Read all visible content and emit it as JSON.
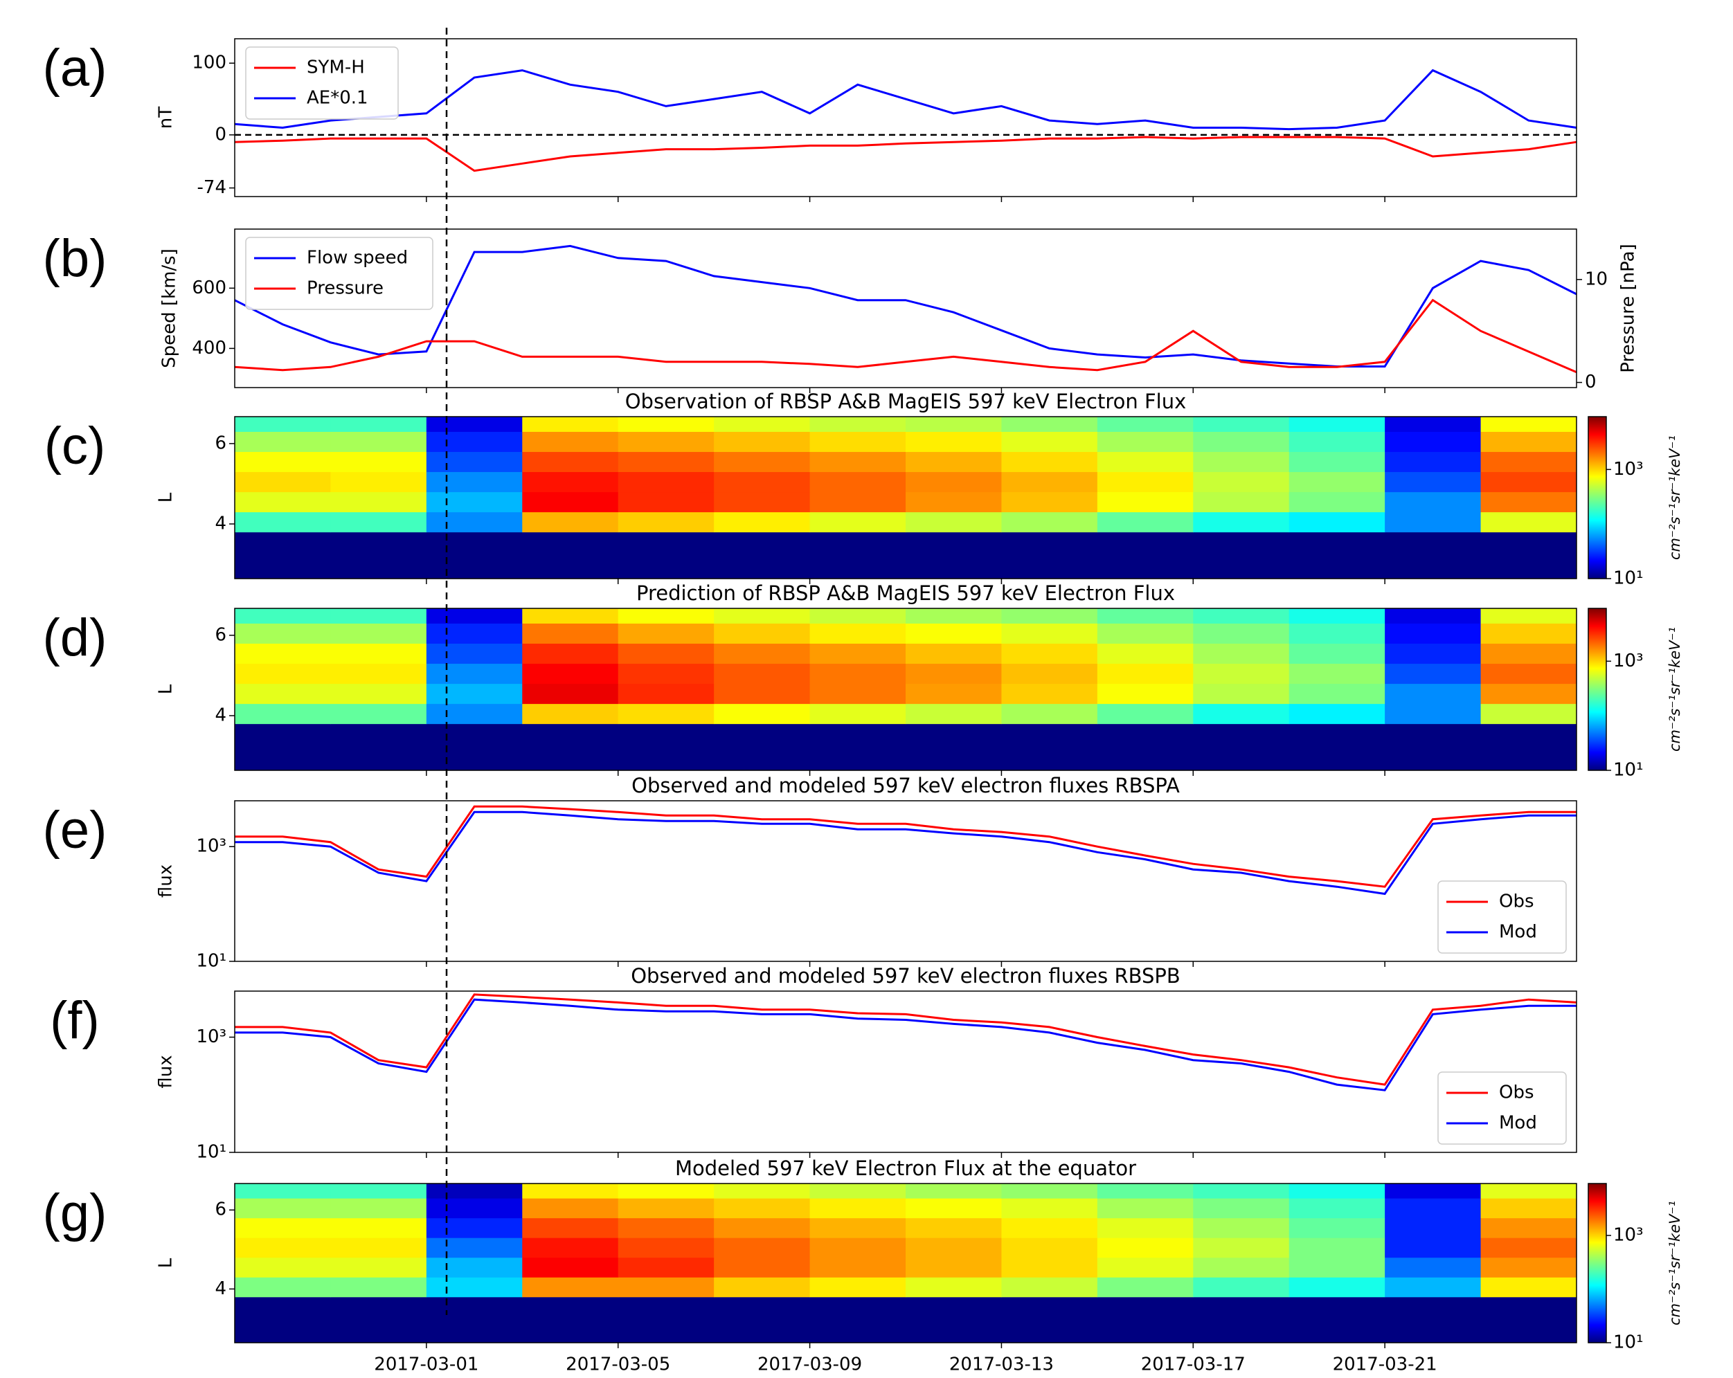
{
  "chart_data": [
    {
      "type": "line",
      "panel_label": "(a)",
      "y_label": "nT",
      "ylim": [
        -86,
        134
      ],
      "yticks": [
        -74,
        0,
        100
      ],
      "reference_line": 0,
      "legend": "upper left",
      "x": [
        "2017-02-25",
        "2017-02-26",
        "2017-02-27",
        "2017-02-28",
        "2017-03-01",
        "2017-03-02",
        "2017-03-03",
        "2017-03-04",
        "2017-03-05",
        "2017-03-06",
        "2017-03-07",
        "2017-03-08",
        "2017-03-09",
        "2017-03-10",
        "2017-03-11",
        "2017-03-12",
        "2017-03-13",
        "2017-03-14",
        "2017-03-15",
        "2017-03-16",
        "2017-03-17",
        "2017-03-18",
        "2017-03-19",
        "2017-03-20",
        "2017-03-21",
        "2017-03-22",
        "2017-03-23",
        "2017-03-24",
        "2017-03-25"
      ],
      "series": [
        {
          "name": "SYM-H",
          "color": "#ff0000",
          "values": [
            -10,
            -8,
            -5,
            -5,
            -5,
            -50,
            -40,
            -30,
            -25,
            -20,
            -20,
            -18,
            -15,
            -15,
            -12,
            -10,
            -8,
            -5,
            -5,
            -3,
            -5,
            -3,
            -3,
            -3,
            -5,
            -30,
            -25,
            -20,
            -10
          ]
        },
        {
          "name": "AE*0.1",
          "color": "#0000ff",
          "values": [
            15,
            10,
            20,
            25,
            30,
            80,
            90,
            70,
            60,
            40,
            50,
            60,
            30,
            70,
            50,
            30,
            40,
            20,
            15,
            20,
            10,
            10,
            8,
            10,
            20,
            90,
            60,
            20,
            10
          ]
        }
      ]
    },
    {
      "type": "line",
      "panel_label": "(b)",
      "y_label": "Speed [km/s]",
      "y2_label": "Pressure [nPa]",
      "ylim": [
        270,
        796
      ],
      "yticks": [
        400,
        600
      ],
      "y2lim": [
        -0.5,
        14.9
      ],
      "y2ticks": [
        0,
        10
      ],
      "legend": "upper left",
      "x": [
        "2017-02-25",
        "2017-02-26",
        "2017-02-27",
        "2017-02-28",
        "2017-03-01",
        "2017-03-02",
        "2017-03-03",
        "2017-03-04",
        "2017-03-05",
        "2017-03-06",
        "2017-03-07",
        "2017-03-08",
        "2017-03-09",
        "2017-03-10",
        "2017-03-11",
        "2017-03-12",
        "2017-03-13",
        "2017-03-14",
        "2017-03-15",
        "2017-03-16",
        "2017-03-17",
        "2017-03-18",
        "2017-03-19",
        "2017-03-20",
        "2017-03-21",
        "2017-03-22",
        "2017-03-23",
        "2017-03-24",
        "2017-03-25"
      ],
      "series": [
        {
          "name": "Flow speed",
          "color": "#0000ff",
          "values": [
            560,
            480,
            420,
            380,
            390,
            720,
            720,
            740,
            700,
            690,
            640,
            620,
            600,
            560,
            560,
            520,
            460,
            400,
            380,
            370,
            380,
            360,
            350,
            340,
            340,
            600,
            690,
            660,
            580
          ]
        },
        {
          "name": "Pressure",
          "color": "#ff0000",
          "axis": "y2",
          "values": [
            1.5,
            1.2,
            1.5,
            2.5,
            4,
            4,
            2.5,
            2.5,
            2.5,
            2,
            2,
            2,
            1.8,
            1.5,
            2,
            2.5,
            2,
            1.5,
            1.2,
            2,
            5,
            2,
            1.5,
            1.5,
            2,
            8,
            5,
            3,
            1
          ]
        }
      ]
    },
    {
      "type": "heatmap",
      "panel_label": "(c)",
      "title": "Observation of RBSP A&B MagEIS 597 keV Electron Flux",
      "y_label": "L",
      "ylim": [
        2.64,
        6.67
      ],
      "yticks": [
        4,
        6
      ],
      "colorbar_label": "cm⁻²s⁻¹sr⁻¹keV⁻¹",
      "clim": [
        10,
        9300
      ],
      "cscale": "log",
      "cticks": [
        {
          "value": 10,
          "label": "10¹"
        },
        {
          "value": 1000,
          "label": "10³"
        }
      ],
      "x_bins": [
        "2017-02-25",
        "2017-02-27",
        "2017-03-01",
        "2017-03-03",
        "2017-03-05",
        "2017-03-07",
        "2017-03-09",
        "2017-03-11",
        "2017-03-13",
        "2017-03-15",
        "2017-03-17",
        "2017-03-19",
        "2017-03-21",
        "2017-03-23",
        "2017-03-25"
      ],
      "y_bins": [
        2.64,
        3.8,
        4.3,
        4.8,
        5.3,
        5.8,
        6.3,
        6.67
      ],
      "z": [
        [
          10,
          10,
          10,
          10,
          10,
          10,
          10,
          10,
          10,
          10,
          10,
          10,
          10,
          10
        ],
        [
          200,
          200,
          60,
          1200,
          1000,
          800,
          600,
          500,
          400,
          250,
          150,
          120,
          60,
          600
        ],
        [
          600,
          600,
          80,
          4000,
          3000,
          2500,
          2000,
          1500,
          1100,
          700,
          450,
          300,
          60,
          1800
        ],
        [
          900,
          800,
          60,
          3500,
          3000,
          2500,
          2000,
          1600,
          1200,
          800,
          500,
          350,
          40,
          2500
        ],
        [
          700,
          700,
          40,
          2500,
          2200,
          1800,
          1500,
          1200,
          900,
          600,
          400,
          250,
          30,
          2000
        ],
        [
          400,
          400,
          30,
          1500,
          1300,
          1100,
          900,
          800,
          600,
          400,
          300,
          200,
          25,
          1200
        ],
        [
          200,
          200,
          20,
          800,
          700,
          600,
          500,
          450,
          350,
          250,
          200,
          150,
          20,
          700
        ]
      ]
    },
    {
      "type": "heatmap",
      "panel_label": "(d)",
      "title": "Prediction of RBSP A&B MagEIS 597 keV Electron Flux",
      "y_label": "L",
      "ylim": [
        2.64,
        6.67
      ],
      "yticks": [
        4,
        6
      ],
      "colorbar_label": "cm⁻²s⁻¹sr⁻¹keV⁻¹",
      "clim": [
        10,
        9300
      ],
      "cscale": "log",
      "cticks": [
        {
          "value": 10,
          "label": "10¹"
        },
        {
          "value": 1000,
          "label": "10³"
        }
      ],
      "x_bins": [
        "2017-02-25",
        "2017-02-27",
        "2017-03-01",
        "2017-03-03",
        "2017-03-05",
        "2017-03-07",
        "2017-03-09",
        "2017-03-11",
        "2017-03-13",
        "2017-03-15",
        "2017-03-17",
        "2017-03-19",
        "2017-03-21",
        "2017-03-23",
        "2017-03-25"
      ],
      "y_bins": [
        2.64,
        3.8,
        4.3,
        4.8,
        5.3,
        5.8,
        6.3,
        6.67
      ],
      "z": [
        [
          10,
          10,
          10,
          10,
          10,
          10,
          10,
          10,
          10,
          10,
          10,
          10,
          10,
          10
        ],
        [
          250,
          250,
          60,
          1000,
          900,
          700,
          600,
          500,
          400,
          250,
          150,
          120,
          60,
          500
        ],
        [
          600,
          600,
          80,
          4500,
          3000,
          2200,
          1800,
          1400,
          1000,
          700,
          450,
          300,
          60,
          1500
        ],
        [
          800,
          800,
          60,
          4000,
          2800,
          2200,
          1800,
          1500,
          1100,
          800,
          500,
          350,
          40,
          2000
        ],
        [
          700,
          700,
          40,
          3000,
          2200,
          1700,
          1400,
          1100,
          900,
          600,
          400,
          250,
          30,
          1500
        ],
        [
          400,
          400,
          30,
          1800,
          1300,
          1000,
          800,
          700,
          600,
          400,
          300,
          200,
          25,
          1000
        ],
        [
          200,
          200,
          20,
          900,
          700,
          600,
          500,
          400,
          350,
          250,
          200,
          150,
          20,
          600
        ]
      ]
    },
    {
      "type": "line",
      "panel_label": "(e)",
      "title": "Observed and modeled 597 keV electron fluxes RBSPA",
      "y_label": "flux",
      "yscale": "log",
      "ylim": [
        10,
        6300
      ],
      "yticks": [
        {
          "value": 10,
          "label": "10¹"
        },
        {
          "value": 1000,
          "label": "10³"
        }
      ],
      "legend": "lower right",
      "x": [
        "2017-02-25",
        "2017-02-26",
        "2017-02-27",
        "2017-02-28",
        "2017-03-01",
        "2017-03-02",
        "2017-03-03",
        "2017-03-04",
        "2017-03-05",
        "2017-03-06",
        "2017-03-07",
        "2017-03-08",
        "2017-03-09",
        "2017-03-10",
        "2017-03-11",
        "2017-03-12",
        "2017-03-13",
        "2017-03-14",
        "2017-03-15",
        "2017-03-16",
        "2017-03-17",
        "2017-03-18",
        "2017-03-19",
        "2017-03-20",
        "2017-03-21",
        "2017-03-22",
        "2017-03-23",
        "2017-03-24",
        "2017-03-25"
      ],
      "series": [
        {
          "name": "Obs",
          "color": "#ff0000",
          "values": [
            1500,
            1500,
            1200,
            400,
            300,
            5000,
            5000,
            4500,
            4000,
            3500,
            3500,
            3000,
            3000,
            2500,
            2500,
            2000,
            1800,
            1500,
            1000,
            700,
            500,
            400,
            300,
            250,
            200,
            3000,
            3500,
            4000,
            4000
          ]
        },
        {
          "name": "Mod",
          "color": "#0000ff",
          "values": [
            1200,
            1200,
            1000,
            350,
            250,
            4000,
            4000,
            3500,
            3000,
            2800,
            2800,
            2500,
            2500,
            2000,
            2000,
            1700,
            1500,
            1200,
            800,
            600,
            400,
            350,
            250,
            200,
            150,
            2500,
            3000,
            3500,
            3500
          ]
        }
      ]
    },
    {
      "type": "line",
      "panel_label": "(f)",
      "title": "Observed and modeled 597 keV electron fluxes RBSPB",
      "y_label": "flux",
      "yscale": "log",
      "ylim": [
        10,
        6300
      ],
      "yticks": [
        {
          "value": 10,
          "label": "10¹"
        },
        {
          "value": 1000,
          "label": "10³"
        }
      ],
      "legend": "lower right",
      "x": [
        "2017-02-25",
        "2017-02-26",
        "2017-02-27",
        "2017-02-28",
        "2017-03-01",
        "2017-03-02",
        "2017-03-03",
        "2017-03-04",
        "2017-03-05",
        "2017-03-06",
        "2017-03-07",
        "2017-03-08",
        "2017-03-09",
        "2017-03-10",
        "2017-03-11",
        "2017-03-12",
        "2017-03-13",
        "2017-03-14",
        "2017-03-15",
        "2017-03-16",
        "2017-03-17",
        "2017-03-18",
        "2017-03-19",
        "2017-03-20",
        "2017-03-21",
        "2017-03-22",
        "2017-03-23",
        "2017-03-24",
        "2017-03-25"
      ],
      "series": [
        {
          "name": "Obs",
          "color": "#ff0000",
          "values": [
            1500,
            1500,
            1200,
            400,
            300,
            5500,
            5000,
            4500,
            4000,
            3500,
            3500,
            3000,
            3000,
            2600,
            2500,
            2000,
            1800,
            1500,
            1000,
            700,
            500,
            400,
            300,
            200,
            150,
            3000,
            3500,
            4500,
            4000
          ]
        },
        {
          "name": "Mod",
          "color": "#0000ff",
          "values": [
            1200,
            1200,
            1000,
            350,
            250,
            4500,
            4000,
            3500,
            3000,
            2800,
            2800,
            2500,
            2500,
            2100,
            2000,
            1700,
            1500,
            1200,
            800,
            600,
            400,
            350,
            250,
            150,
            120,
            2500,
            3000,
            3500,
            3500
          ]
        }
      ]
    },
    {
      "type": "heatmap",
      "panel_label": "(g)",
      "title": "Modeled 597 keV Electron Flux at the equator",
      "y_label": "L",
      "ylim": [
        2.64,
        6.67
      ],
      "yticks": [
        4,
        6
      ],
      "xlim": [
        "2017-02-25",
        "2017-03-25"
      ],
      "xticks": [
        "2017-03-01",
        "2017-03-05",
        "2017-03-09",
        "2017-03-13",
        "2017-03-17",
        "2017-03-21"
      ],
      "colorbar_label": "cm⁻²s⁻¹sr⁻¹keV⁻¹",
      "clim": [
        10,
        9300
      ],
      "cscale": "log",
      "cticks": [
        {
          "value": 10,
          "label": "10¹"
        },
        {
          "value": 1000,
          "label": "10³"
        }
      ],
      "x_bins": [
        "2017-02-25",
        "2017-02-27",
        "2017-03-01",
        "2017-03-03",
        "2017-03-05",
        "2017-03-07",
        "2017-03-09",
        "2017-03-11",
        "2017-03-13",
        "2017-03-15",
        "2017-03-17",
        "2017-03-19",
        "2017-03-21",
        "2017-03-23",
        "2017-03-25"
      ],
      "y_bins": [
        2.64,
        3.8,
        4.3,
        4.8,
        5.3,
        5.8,
        6.3,
        6.67
      ],
      "z": [
        [
          10,
          10,
          10,
          10,
          10,
          10,
          10,
          10,
          10,
          10,
          10,
          10,
          10,
          10
        ],
        [
          300,
          300,
          100,
          1500,
          1500,
          1000,
          800,
          600,
          500,
          300,
          200,
          150,
          80,
          800
        ],
        [
          600,
          600,
          80,
          4000,
          3000,
          2000,
          1500,
          1200,
          900,
          600,
          400,
          300,
          50,
          1500
        ],
        [
          800,
          800,
          50,
          3500,
          2500,
          2000,
          1500,
          1200,
          900,
          700,
          500,
          300,
          30,
          2000
        ],
        [
          700,
          700,
          30,
          2500,
          2000,
          1500,
          1200,
          1000,
          800,
          600,
          400,
          250,
          30,
          1500
        ],
        [
          400,
          400,
          20,
          1500,
          1200,
          1000,
          800,
          700,
          600,
          400,
          300,
          200,
          30,
          1000
        ],
        [
          200,
          200,
          15,
          800,
          700,
          600,
          500,
          400,
          350,
          250,
          200,
          150,
          20,
          600
        ]
      ]
    }
  ]
}
